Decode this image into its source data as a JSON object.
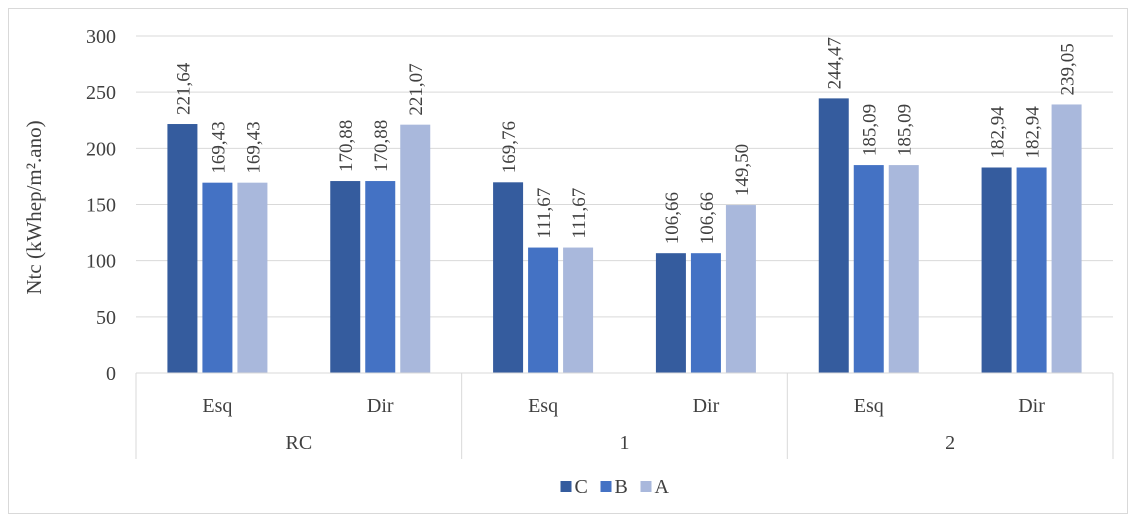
{
  "chart_data": {
    "type": "bar",
    "ylabel": "Ntc (kWhep/m².ano)",
    "ylim": [
      0,
      300
    ],
    "yticks": [
      0,
      50,
      100,
      150,
      200,
      250,
      300
    ],
    "grid": true,
    "legend_position": "bottom",
    "groups": [
      {
        "label": "RC",
        "categories": [
          "Esq",
          "Dir"
        ]
      },
      {
        "label": "1",
        "categories": [
          "Esq",
          "Dir"
        ]
      },
      {
        "label": "2",
        "categories": [
          "Esq",
          "Dir"
        ]
      }
    ],
    "categories": [
      "Esq",
      "Dir",
      "Esq",
      "Dir",
      "Esq",
      "Dir"
    ],
    "series": [
      {
        "name": "C",
        "color": "#355c9e",
        "values": [
          221.64,
          170.88,
          169.76,
          106.66,
          244.47,
          182.94
        ],
        "labels": [
          "221,64",
          "170,88",
          "169,76",
          "106,66",
          "244,47",
          "182,94"
        ]
      },
      {
        "name": "B",
        "color": "#4472c4",
        "values": [
          169.43,
          170.88,
          111.67,
          106.66,
          185.09,
          182.94
        ],
        "labels": [
          "169,43",
          "170,88",
          "111,67",
          "106,66",
          "185,09",
          "182,94"
        ]
      },
      {
        "name": "A",
        "color": "#a9b8dc",
        "values": [
          169.43,
          221.07,
          111.67,
          149.5,
          185.09,
          239.05
        ],
        "labels": [
          "169,43",
          "221,07",
          "111,67",
          "149,50",
          "185,09",
          "239,05"
        ]
      }
    ]
  }
}
